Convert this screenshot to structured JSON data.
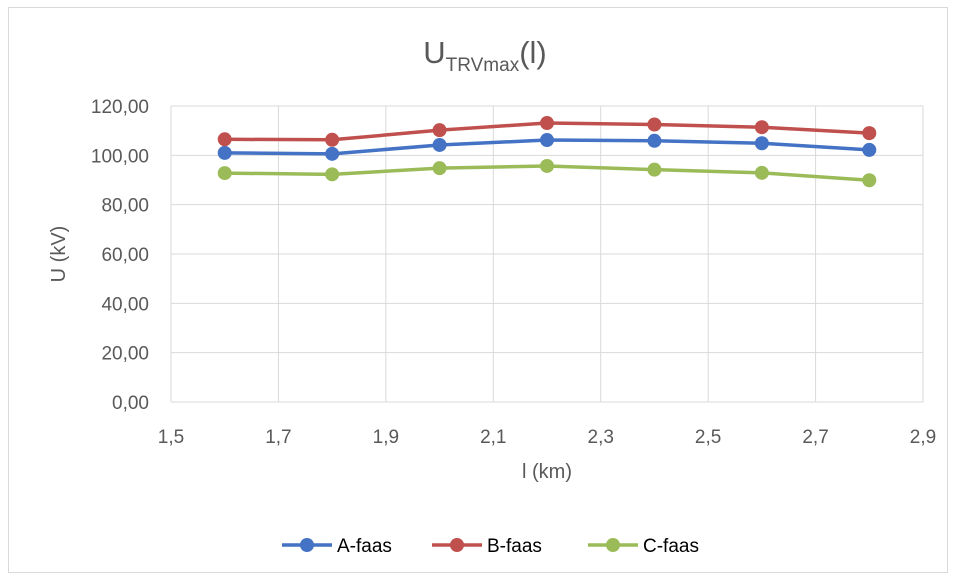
{
  "chart_data": {
    "type": "line",
    "title": "U",
    "title_subscript": "TRVmax",
    "title_suffix": "(l)",
    "xlabel": "l (km)",
    "ylabel": "U (kV)",
    "xlim": [
      1.5,
      2.9
    ],
    "ylim": [
      0,
      120
    ],
    "x_ticks": [
      "1,5",
      "1,7",
      "1,9",
      "2,1",
      "2,3",
      "2,5",
      "2,7",
      "2,9"
    ],
    "y_ticks": [
      "0,00",
      "20,00",
      "40,00",
      "60,00",
      "80,00",
      "100,00",
      "120,00"
    ],
    "grid": true,
    "legend_position": "bottom",
    "x": [
      1.6,
      1.8,
      2.0,
      2.2,
      2.4,
      2.6,
      2.8
    ],
    "series": [
      {
        "name": "A-faas",
        "color": "#4472c4",
        "values": [
          101.0,
          100.6,
          104.2,
          106.2,
          105.9,
          104.9,
          102.2
        ]
      },
      {
        "name": "B-faas",
        "color": "#c0504d",
        "values": [
          106.5,
          106.3,
          110.2,
          113.1,
          112.5,
          111.4,
          109.0
        ]
      },
      {
        "name": "C-faas",
        "color": "#9bbb59",
        "values": [
          92.8,
          92.3,
          94.8,
          95.7,
          94.2,
          92.9,
          89.9
        ]
      }
    ]
  }
}
